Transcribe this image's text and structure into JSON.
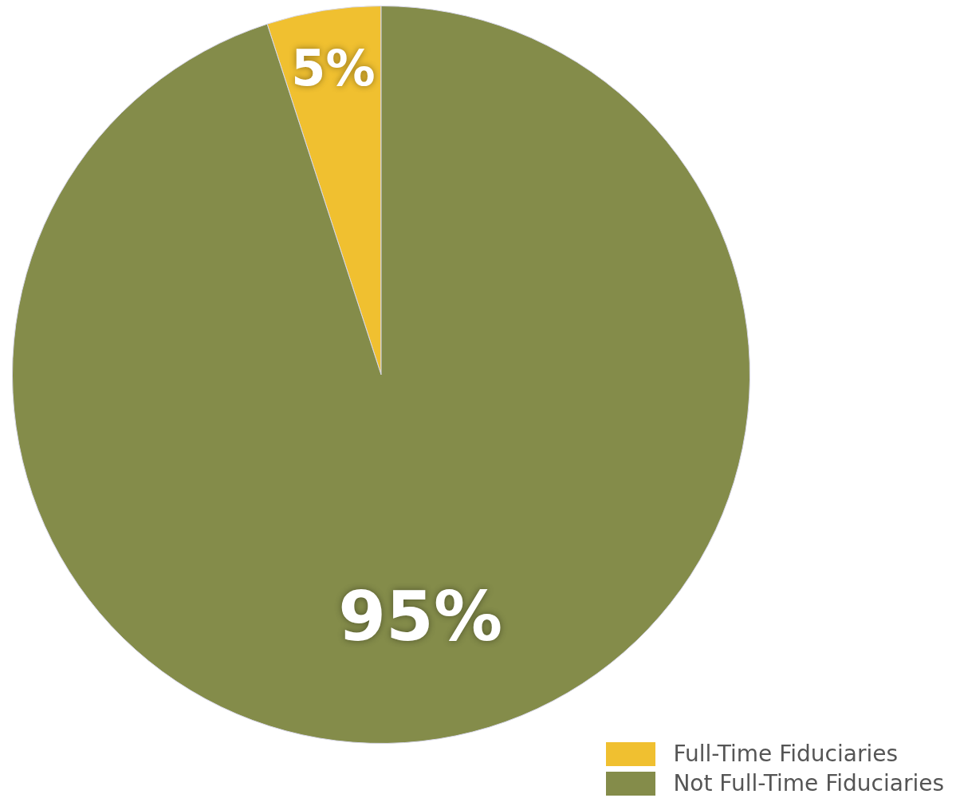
{
  "chart_data": {
    "type": "pie",
    "categories": [
      "Full-Time Fiduciaries",
      "Not Full-Time Fiduciaries"
    ],
    "values": [
      5,
      95
    ],
    "colors": [
      "#f0c030",
      "#848c4a"
    ],
    "value_labels": [
      "5%",
      "95%"
    ],
    "legend": "bottom right"
  }
}
